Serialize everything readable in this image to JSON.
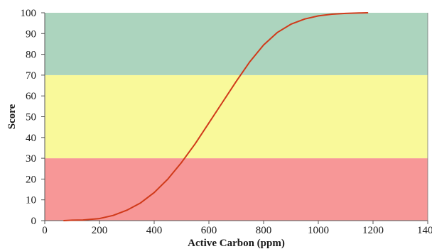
{
  "chart_data": {
    "type": "line",
    "xlabel": "Active Carbon (ppm)",
    "ylabel": "Score",
    "xlim": [
      0,
      1400
    ],
    "ylim": [
      0,
      100
    ],
    "x_ticks": [
      0,
      200,
      400,
      600,
      800,
      1000,
      1200,
      1400
    ],
    "y_ticks": [
      0,
      10,
      20,
      30,
      40,
      50,
      60,
      70,
      80,
      90,
      100
    ],
    "grid": false,
    "bands": [
      {
        "from": 0,
        "to": 30,
        "color": "#f79797"
      },
      {
        "from": 30,
        "to": 70,
        "color": "#f9f99a"
      },
      {
        "from": 70,
        "to": 100,
        "color": "#acd4be"
      }
    ],
    "series": [
      {
        "color": "#d03a1a",
        "x": [
          70,
          100,
          140,
          200,
          250,
          300,
          350,
          400,
          450,
          500,
          550,
          600,
          650,
          700,
          750,
          800,
          850,
          900,
          950,
          1000,
          1050,
          1100,
          1150,
          1180
        ],
        "y": [
          0,
          0.2,
          0.3,
          1,
          2.5,
          5,
          8.5,
          13.5,
          20,
          28,
          37,
          47,
          57,
          67,
          76.5,
          84.5,
          90.5,
          94.5,
          97,
          98.5,
          99.3,
          99.7,
          99.9,
          100
        ]
      }
    ]
  }
}
